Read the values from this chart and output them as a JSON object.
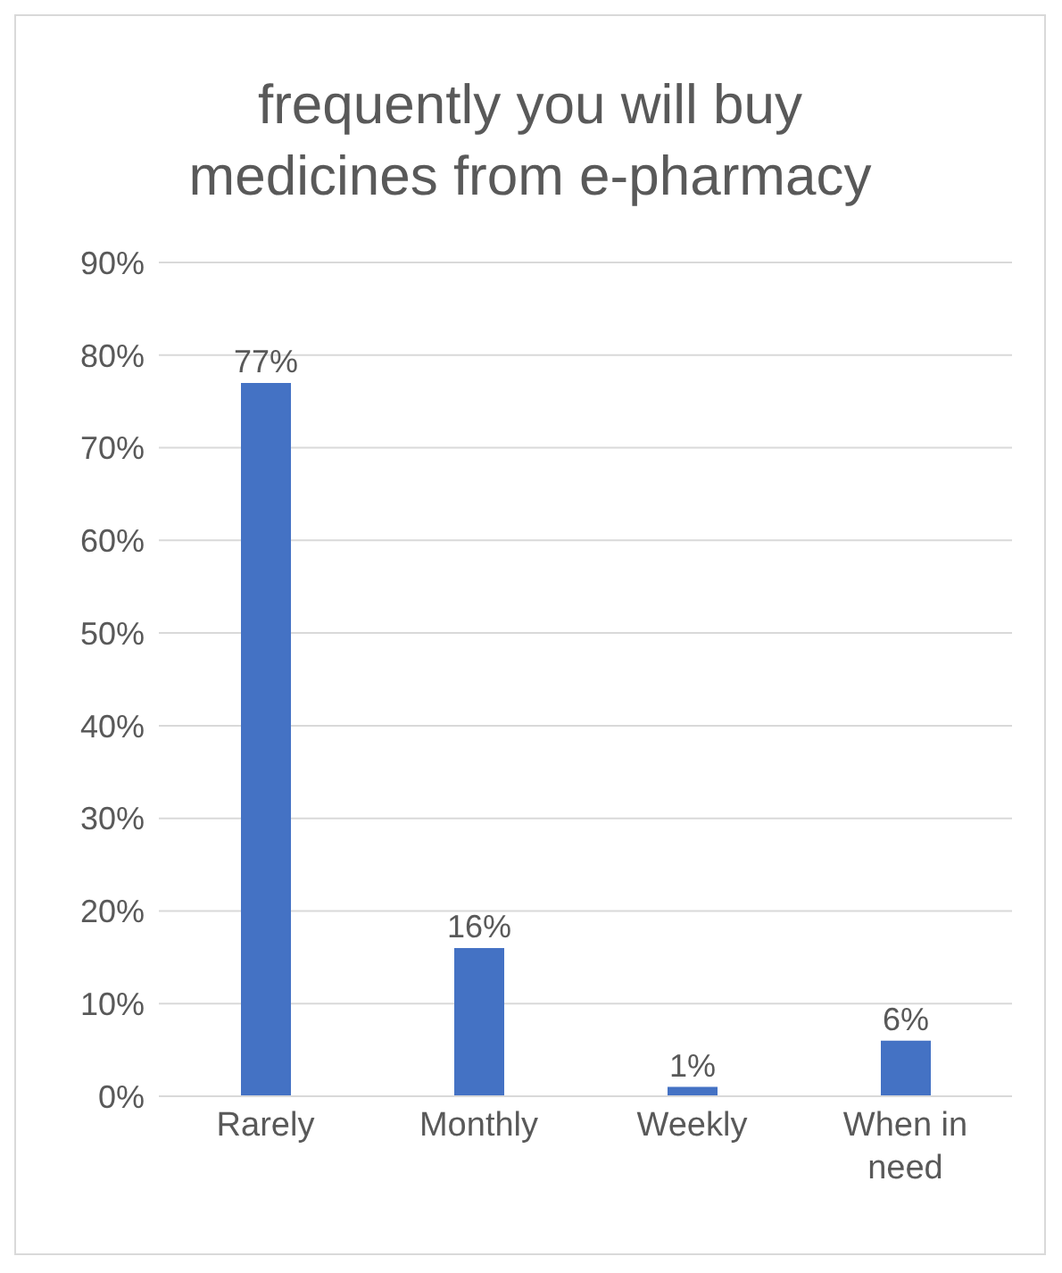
{
  "chart_data": {
    "type": "bar",
    "title": "frequently you will buy medicines from e-pharmacy",
    "categories": [
      "Rarely",
      "Monthly",
      "Weekly",
      "When in need"
    ],
    "values": [
      77,
      16,
      1,
      6
    ],
    "color": "#4472c4",
    "value_labels": [
      "77%",
      "16%",
      "1%",
      "6%"
    ],
    "ylim": [
      0,
      90
    ],
    "yticks": [
      {
        "value": 0,
        "label": "0%"
      },
      {
        "value": 10,
        "label": "10%"
      },
      {
        "value": 20,
        "label": "20%"
      },
      {
        "value": 30,
        "label": "30%"
      },
      {
        "value": 40,
        "label": "40%"
      },
      {
        "value": 50,
        "label": "50%"
      },
      {
        "value": 60,
        "label": "60%"
      },
      {
        "value": 70,
        "label": "70%"
      },
      {
        "value": 80,
        "label": "80%"
      },
      {
        "value": 90,
        "label": "90%"
      }
    ],
    "grid": "y"
  }
}
